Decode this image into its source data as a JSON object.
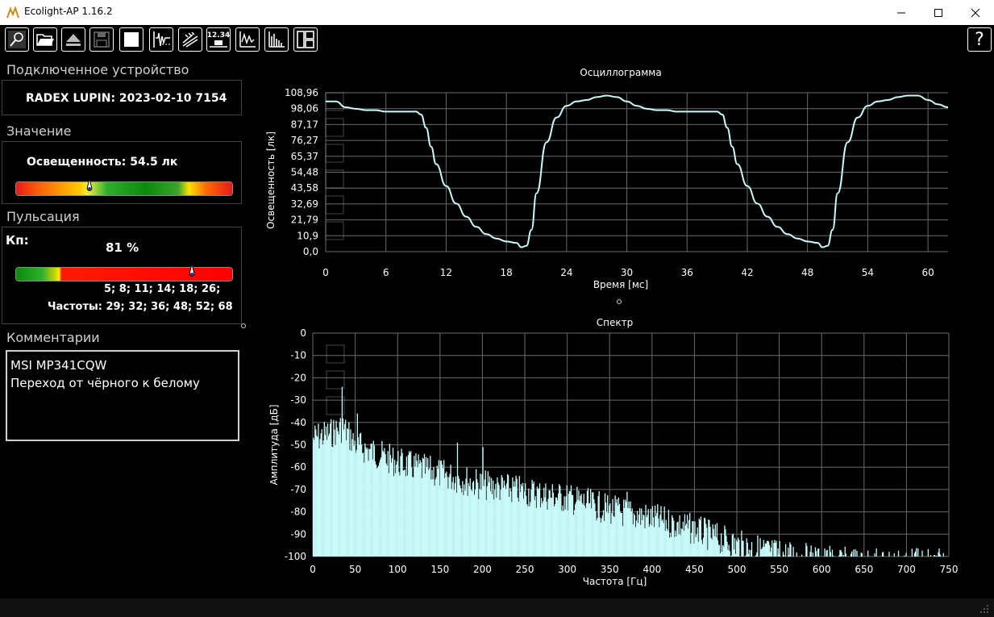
{
  "window": {
    "title": "Ecolight-AP 1.16.2",
    "minimize_icon": "minimize-icon",
    "maximize_icon": "maximize-icon",
    "close_icon": "close-icon"
  },
  "toolbar": {
    "buttons": [
      "search-icon",
      "open-folder-icon",
      "eject-icon",
      "save-icon",
      "stop-icon",
      "oscillogram-icon",
      "flicker-icon",
      "value-display-icon",
      "waveform-icon",
      "spectrum-icon",
      "layout-icon"
    ],
    "value_display_text": "12.34",
    "help_label": "?"
  },
  "device": {
    "section_label": "Подключенное устройство",
    "name": "RADEX LUPIN: 2023-02-10 7154"
  },
  "value": {
    "section_label": "Значение",
    "text": "Освещенность: 54.5 лк",
    "gauge_level": 0.34
  },
  "pulsation": {
    "section_label": "Пульсация",
    "kp_label": "Кп:",
    "kp_value": "81 %",
    "gauge_level": 0.81,
    "freq_line_above": "5; 8; 11; 14; 18; 26;",
    "freq_line": "Частоты: 29; 32; 36; 48; 52; 68"
  },
  "comments": {
    "section_label": "Комментарии",
    "line1": "MSI MP341CQW",
    "line2": "Переход от чёрного к белому"
  },
  "chart_data": [
    {
      "type": "line",
      "title": "Осциллограмма",
      "xlabel": "Время [мс]",
      "ylabel": "Освещенность [лк]",
      "xlim": [
        0,
        62
      ],
      "ylim": [
        0,
        108.96
      ],
      "x_ticks": [
        "0",
        "6",
        "12",
        "18",
        "24",
        "30",
        "36",
        "42",
        "48",
        "54",
        "60"
      ],
      "y_ticks": [
        "108,96",
        "98,06",
        "87,17",
        "76,27",
        "65,37",
        "54,48",
        "43,58",
        "32,69",
        "21,79",
        "10,9",
        "0,0"
      ],
      "grid": true,
      "x": [
        0,
        1,
        2,
        3,
        4,
        5,
        6,
        7,
        8,
        9,
        9.5,
        10,
        10.5,
        11,
        12,
        13,
        14,
        15,
        16,
        17,
        18,
        19,
        19.5,
        20,
        20.5,
        21,
        22,
        23,
        24,
        25,
        26,
        27,
        28,
        29,
        30,
        31,
        32,
        33,
        34,
        35,
        36,
        37,
        38,
        39,
        39.5,
        40,
        40.5,
        41,
        42,
        43,
        44,
        45,
        46,
        47,
        48,
        49,
        49.5,
        50,
        50.5,
        51,
        52,
        53,
        54,
        55,
        56,
        57,
        58,
        59,
        60,
        61,
        62
      ],
      "y": [
        103,
        103,
        99,
        98,
        97,
        97,
        96,
        96,
        96,
        96,
        94,
        85,
        72,
        60,
        45,
        33,
        24,
        17,
        12,
        9,
        7,
        6,
        3,
        4,
        15,
        40,
        75,
        92,
        100,
        103,
        104,
        106,
        107,
        106,
        103,
        100,
        98,
        97,
        97,
        96,
        96,
        96,
        96,
        96,
        94,
        85,
        72,
        60,
        45,
        33,
        24,
        17,
        12,
        9,
        7,
        6,
        3,
        4,
        15,
        40,
        75,
        92,
        100,
        103,
        104,
        106,
        107,
        107,
        104,
        101,
        99
      ]
    },
    {
      "type": "bar",
      "title": "Спектр",
      "xlabel": "Частота [Гц]",
      "ylabel": "Амплитуда [дБ]",
      "xlim": [
        0,
        750
      ],
      "ylim": [
        -100,
        0
      ],
      "x_ticks": [
        "0",
        "50",
        "100",
        "150",
        "200",
        "250",
        "300",
        "350",
        "400",
        "450",
        "500",
        "550",
        "600",
        "650",
        "700",
        "750"
      ],
      "y_ticks": [
        "0",
        "-10",
        "-20",
        "-30",
        "-40",
        "-50",
        "-60",
        "-70",
        "-80",
        "-90",
        "-100"
      ],
      "grid": true,
      "envelope": {
        "freq": [
          0,
          20,
          35,
          50,
          100,
          150,
          200,
          250,
          300,
          350,
          400,
          450,
          500,
          550,
          600,
          650,
          700,
          750
        ],
        "db": [
          -44,
          -42,
          -39,
          -47,
          -55,
          -60,
          -65,
          -68,
          -71,
          -76,
          -80,
          -85,
          -92,
          -96,
          -99,
          -100,
          -100,
          -100
        ]
      },
      "peaks": [
        {
          "freq": 34,
          "db": -24
        },
        {
          "freq": 52,
          "db": -36
        },
        {
          "freq": 170,
          "db": -49
        },
        {
          "freq": 200,
          "db": -51
        },
        {
          "freq": 370,
          "db": -71
        }
      ]
    }
  ],
  "colors": {
    "trace": "#c8fafa",
    "grid": "#6a6a6a",
    "background": "#000000"
  }
}
